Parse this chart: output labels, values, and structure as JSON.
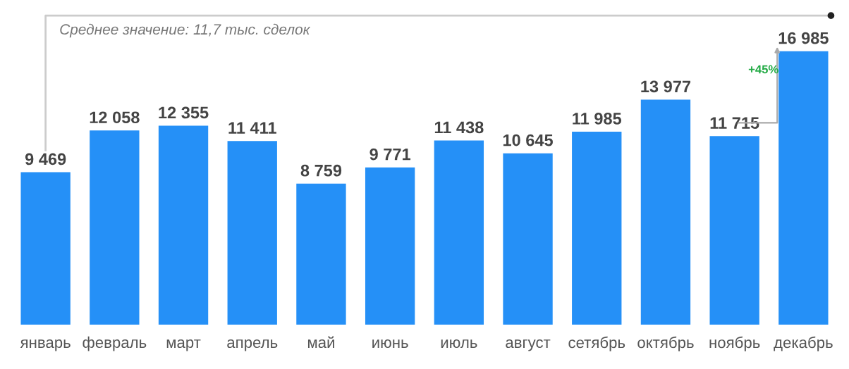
{
  "chart_data": {
    "type": "bar",
    "categories": [
      "январь",
      "февраль",
      "март",
      "апрель",
      "май",
      "июнь",
      "июль",
      "август",
      "сетябрь",
      "октябрь",
      "ноябрь",
      "декабрь"
    ],
    "values": [
      9469,
      12058,
      12355,
      11411,
      8759,
      9771,
      11438,
      10645,
      11985,
      13977,
      11715,
      16985
    ],
    "value_labels": [
      "9 469",
      "12 058",
      "12 355",
      "11 411",
      "8 759",
      "9 771",
      "11 438",
      "10 645",
      "11 985",
      "13 977",
      "11 715",
      "16 985"
    ],
    "color": "#2590f7",
    "annotations": [
      "Среднее значение: 11,7 тыс. сделок",
      "+45%"
    ]
  }
}
